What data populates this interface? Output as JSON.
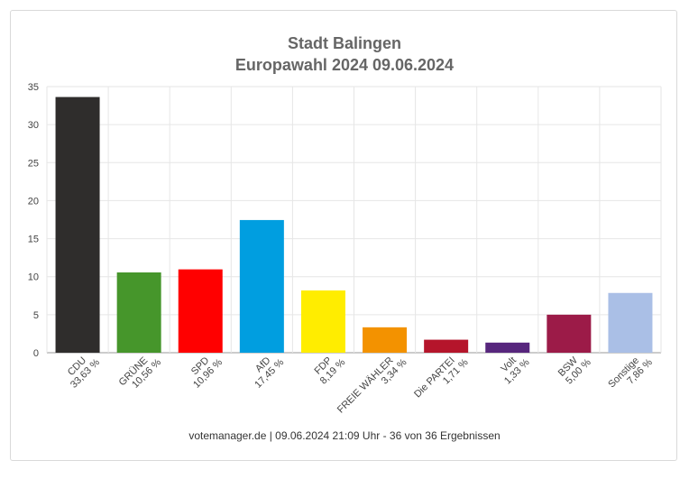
{
  "chart_data": {
    "type": "bar",
    "title": "Stadt Balingen",
    "subtitle": "Europawahl 2024 09.06.2024",
    "xlabel": "",
    "ylabel": "",
    "ylim": [
      0,
      35
    ],
    "yticks": [
      "0",
      "5",
      "10",
      "15",
      "20",
      "25",
      "30",
      "35"
    ],
    "grid": true,
    "legend": "none",
    "categories": [
      "CDU",
      "GRÜNE",
      "SPD",
      "AfD",
      "FDP",
      "FREIE WÄHLER",
      "Die PARTEI",
      "Volt",
      "BSW",
      "Sonstige"
    ],
    "value_labels": [
      "33,63 %",
      "10,56 %",
      "10,96 %",
      "17,45 %",
      "8,19 %",
      "3,34 %",
      "1,71 %",
      "1,33 %",
      "5,00 %",
      "7,86 %"
    ],
    "values": [
      33.63,
      10.56,
      10.96,
      17.45,
      8.19,
      3.34,
      1.71,
      1.33,
      5.0,
      7.86
    ],
    "colors": [
      "#2f2d2c",
      "#46962b",
      "#ff0000",
      "#009ee0",
      "#ffed00",
      "#f39200",
      "#b5152b",
      "#57267d",
      "#9c1b48",
      "#aabfe6"
    ]
  },
  "footer": "votemanager.de | 09.06.2024 21:09 Uhr - 36 von 36 Ergebnissen"
}
